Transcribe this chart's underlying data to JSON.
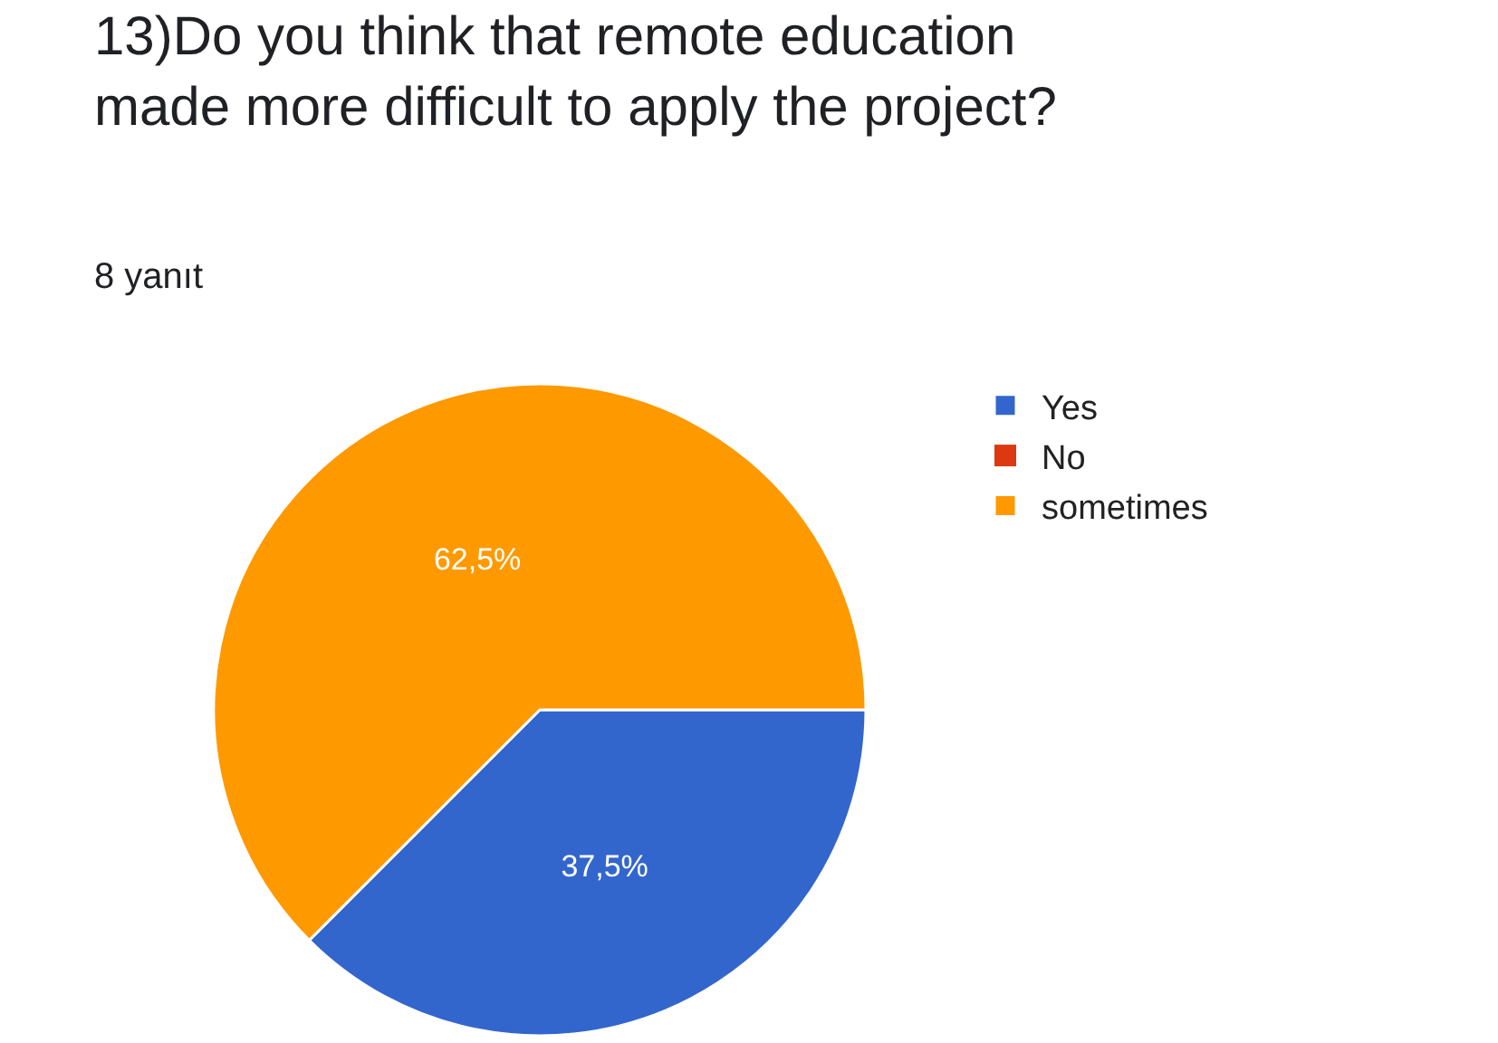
{
  "chart_data": {
    "type": "pie",
    "title": "13)Do you think that remote education\nmade more difficult to apply the project?",
    "subtitle": "8 yanıt",
    "categories": [
      "Yes",
      "No",
      "sometimes"
    ],
    "values": [
      37.5,
      0,
      62.5
    ],
    "value_labels": [
      "37,5%",
      null,
      "62,5%"
    ],
    "colors": [
      "#3366cc",
      "#dc3912",
      "#ff9900"
    ],
    "legend": "top right"
  }
}
